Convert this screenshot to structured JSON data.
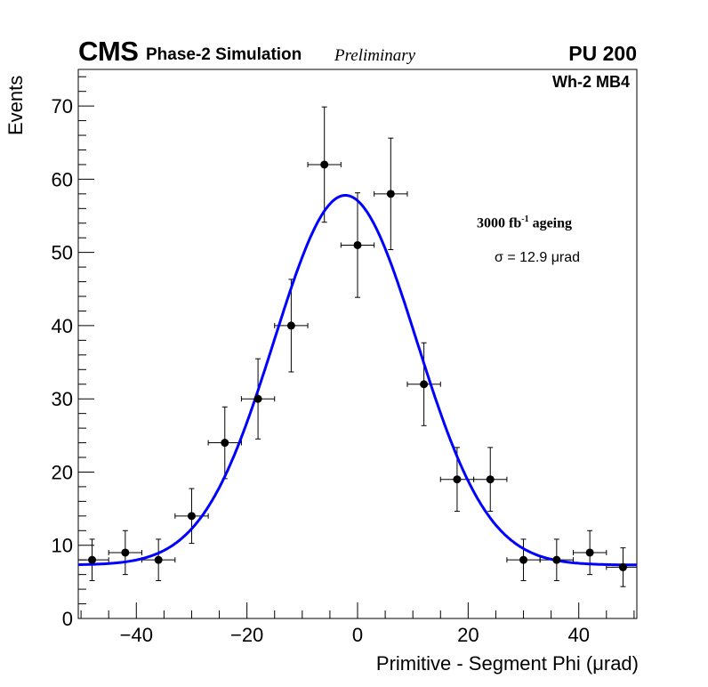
{
  "header": {
    "experiment": "CMS",
    "subtitle": "Phase-2 Simulation",
    "status": "Preliminary",
    "pileup": "PU 200",
    "chamber": "Wh-2 MB4"
  },
  "annotations": {
    "ageing_prefix": "3000 fb",
    "ageing_exp": "-1",
    "ageing_suffix": " ageing",
    "sigma": "σ = 12.9 μrad"
  },
  "chart_data": {
    "type": "scatter",
    "title": "",
    "xlabel": "Primitive - Segment Phi (μrad)",
    "ylabel": "Events",
    "xlim": [
      -50.5,
      50.5
    ],
    "ylim": [
      0,
      75
    ],
    "xticks": [
      -40,
      -20,
      0,
      20,
      40
    ],
    "yticks": [
      0,
      10,
      20,
      30,
      40,
      50,
      60,
      70
    ],
    "xtick_labels": [
      "−40",
      "−20",
      "0",
      "20",
      "40"
    ],
    "ytick_labels": [
      "0",
      "10",
      "20",
      "30",
      "40",
      "50",
      "60",
      "70"
    ],
    "bin_half_width": 3,
    "series": [
      {
        "name": "Data",
        "x": [
          -48,
          -42,
          -36,
          -30,
          -24,
          -18,
          -12,
          -6,
          0,
          6,
          12,
          18,
          24,
          30,
          36,
          42,
          48
        ],
        "y": [
          8,
          9,
          8,
          14,
          24,
          30,
          40,
          62,
          51,
          58,
          32,
          19,
          19,
          8,
          8,
          9,
          7
        ],
        "color": "#000000"
      }
    ],
    "fit": {
      "name": "Gaussian fit",
      "color": "#0000ff",
      "function": "gaussian + constant",
      "amplitude": 50.5,
      "mean": -2.2,
      "sigma": 12.9,
      "constant": 7.3
    }
  }
}
